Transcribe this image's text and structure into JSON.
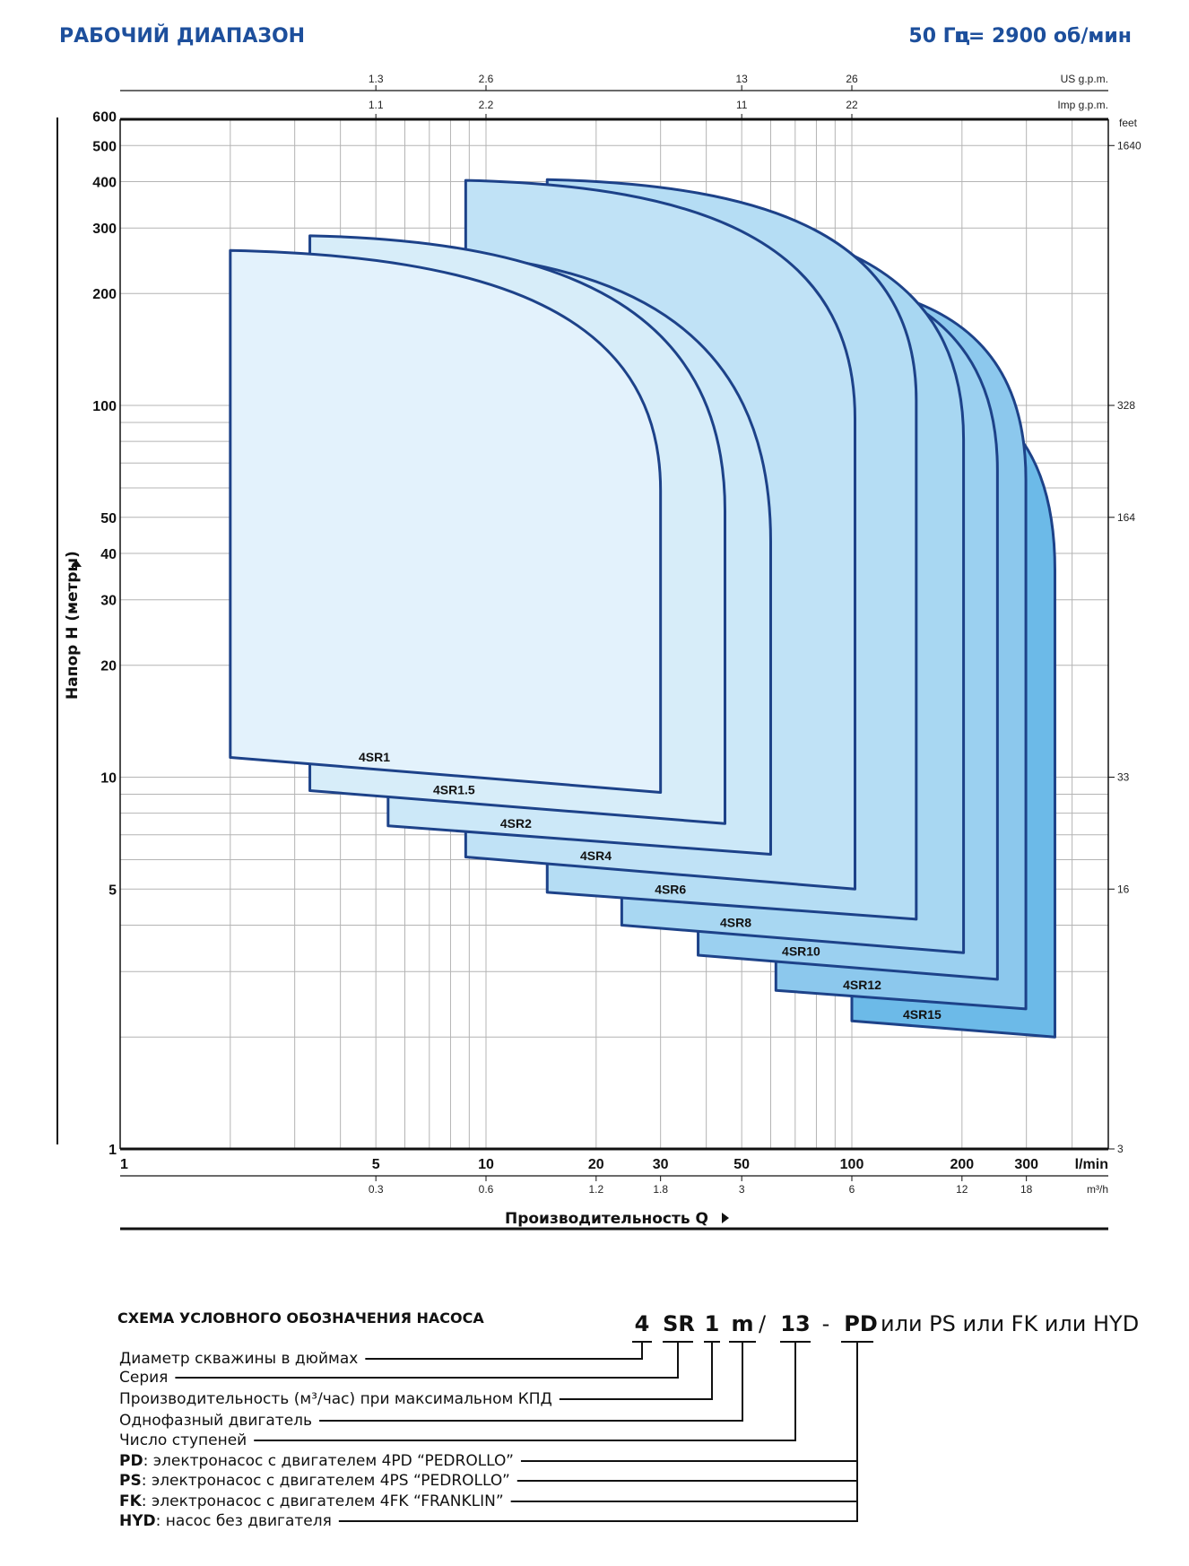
{
  "header": {
    "title": "РАБОЧИЙ ДИАПАЗОН",
    "frequency": "50 Гц",
    "speed": "n= 2900 об/мин"
  },
  "chart_data": {
    "type": "area",
    "title": "",
    "xlabel": "Производительность Q",
    "ylabel": "Напор H (метры)",
    "x_scale": "log",
    "y_scale": "log",
    "xlim": [
      1,
      500
    ],
    "ylim": [
      1,
      600
    ],
    "grid": true,
    "x_unit": "l/min",
    "x_ticks": [
      "1",
      "5",
      "10",
      "20",
      "30",
      "50",
      "100",
      "200",
      "300"
    ],
    "x_tick_values": [
      1,
      5,
      10,
      20,
      30,
      50,
      100,
      200,
      300
    ],
    "y_ticks": [
      "600",
      "500",
      "400",
      "300",
      "200",
      "100",
      "50",
      "40",
      "30",
      "20",
      "10",
      "5",
      "1"
    ],
    "y_tick_values": [
      600,
      500,
      400,
      300,
      200,
      100,
      50,
      40,
      30,
      20,
      10,
      5,
      1
    ],
    "secondary_axes": {
      "m3h": {
        "unit": "m³/h",
        "ticks": [
          {
            "at": 5,
            "label": "0.3"
          },
          {
            "at": 10,
            "label": "0.6"
          },
          {
            "at": 20,
            "label": "1.2"
          },
          {
            "at": 30,
            "label": "1.8"
          },
          {
            "at": 50,
            "label": "3"
          },
          {
            "at": 100,
            "label": "6"
          },
          {
            "at": 200,
            "label": "12"
          },
          {
            "at": 300,
            "label": "18"
          }
        ]
      },
      "us_gpm": {
        "unit": "US g.p.m.",
        "ticks": [
          {
            "at": 5,
            "label": "1.3"
          },
          {
            "at": 10,
            "label": "2.6"
          },
          {
            "at": 50,
            "label": "13"
          },
          {
            "at": 100,
            "label": "26"
          }
        ]
      },
      "imp_gpm": {
        "unit": "Imp g.p.m.",
        "ticks": [
          {
            "at": 5,
            "label": "1.1"
          },
          {
            "at": 10,
            "label": "2.2"
          },
          {
            "at": 50,
            "label": "11"
          },
          {
            "at": 100,
            "label": "22"
          }
        ]
      },
      "feet": {
        "unit": "feet",
        "ticks": [
          {
            "at": 500,
            "label": "1640"
          },
          {
            "at": 100,
            "label": "328"
          },
          {
            "at": 50,
            "label": "164"
          },
          {
            "at": 10,
            "label": "33"
          },
          {
            "at": 5,
            "label": "16"
          },
          {
            "at": 1,
            "label": "3"
          }
        ]
      }
    },
    "series": [
      {
        "name": "4SR1",
        "q_min": 2.0,
        "q_max": 30,
        "h_max": 261,
        "h_knee": 59,
        "h_min_left": 11.3,
        "h_min_right": 9.1,
        "color": "#e3f2fc"
      },
      {
        "name": "4SR1.5",
        "q_min": 3.3,
        "q_max": 45,
        "h_max": 286,
        "h_knee": 52,
        "h_min_left": 9.2,
        "h_min_right": 7.5,
        "color": "#d7edf9"
      },
      {
        "name": "4SR2",
        "q_min": 5.4,
        "q_max": 60,
        "h_max": 262,
        "h_knee": 43,
        "h_min_left": 7.4,
        "h_min_right": 6.2,
        "color": "#cce8f8"
      },
      {
        "name": "4SR4",
        "q_min": 8.8,
        "q_max": 102,
        "h_max": 403,
        "h_knee": 92,
        "h_min_left": 6.1,
        "h_min_right": 5.0,
        "color": "#c0e2f6"
      },
      {
        "name": "4SR6",
        "q_min": 14.7,
        "q_max": 150,
        "h_max": 405,
        "h_knee": 103,
        "h_min_left": 4.9,
        "h_min_right": 4.15,
        "color": "#b5ddf4"
      },
      {
        "name": "4SR8",
        "q_min": 23.5,
        "q_max": 202,
        "h_max": 330,
        "h_knee": 81,
        "h_min_left": 4.0,
        "h_min_right": 3.37,
        "color": "#a8d7f2"
      },
      {
        "name": "4SR10",
        "q_min": 38,
        "q_max": 250,
        "h_max": 250,
        "h_knee": 67,
        "h_min_left": 3.32,
        "h_min_right": 2.86,
        "color": "#9bd0f0"
      },
      {
        "name": "4SR12",
        "q_min": 62,
        "q_max": 299,
        "h_max": 220,
        "h_knee": 63,
        "h_min_left": 2.67,
        "h_min_right": 2.38,
        "color": "#8cc8ed"
      },
      {
        "name": "4SR15",
        "q_min": 100,
        "q_max": 359,
        "h_max": 125,
        "h_knee": 36,
        "h_min_left": 2.21,
        "h_min_right": 2.0,
        "color": "#6cbae8"
      }
    ],
    "stroke_color": "#1d4289"
  },
  "designation": {
    "title": "СХЕМА УСЛОВНОГО ОБОЗНАЧЕНИЯ НАСОСА",
    "code_parts": [
      "4",
      "SR",
      "1",
      "m",
      "/",
      "13",
      "-",
      "PD"
    ],
    "code_suffix": "или PS или FK или HYD",
    "rows": [
      {
        "bold": "",
        "text": "Диаметр скважины в дюймах"
      },
      {
        "bold": "",
        "text": "Серия"
      },
      {
        "bold": "",
        "text": "Производительность (м³/час) при максимальном КПД"
      },
      {
        "bold": "",
        "text": "Однофазный двигатель"
      },
      {
        "bold": "",
        "text": "Число ступеней"
      },
      {
        "bold": "PD",
        "text": ": электронасос с двигателем 4PD “PEDROLLO”"
      },
      {
        "bold": "PS",
        "text": ": электронасос с двигателем 4PS “PEDROLLO”"
      },
      {
        "bold": "FK",
        "text": ": электронасос с двигателем 4FK “FRANKLIN”"
      },
      {
        "bold": "HYD",
        "text": ": насос без двигателя"
      }
    ]
  }
}
